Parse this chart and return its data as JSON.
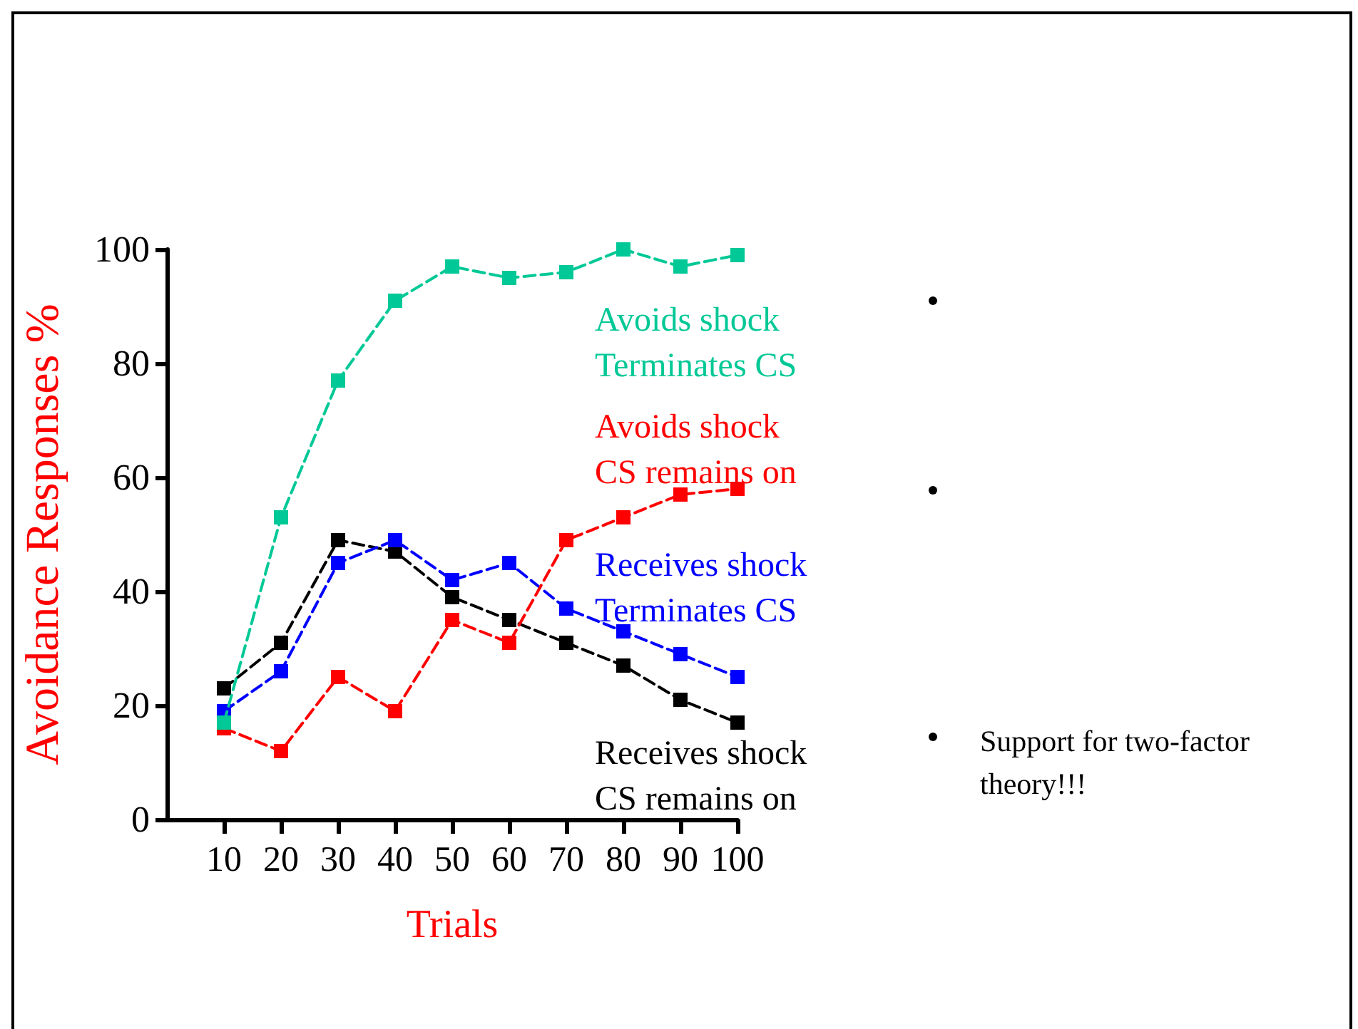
{
  "chart_data": {
    "type": "line",
    "xlabel": "Trials",
    "ylabel": "Avoidance Responses %",
    "x": [
      10,
      20,
      30,
      40,
      50,
      60,
      70,
      80,
      90,
      100
    ],
    "xlim": [
      0,
      100
    ],
    "xticks": [
      10,
      20,
      30,
      40,
      50,
      60,
      70,
      80,
      90,
      100
    ],
    "ylim": [
      0,
      100
    ],
    "yticks": [
      0,
      20,
      40,
      60,
      80,
      100
    ],
    "grid": false,
    "legend": false,
    "marker": "square",
    "line_style": "dashed",
    "series": [
      {
        "name": "Avoids shock\nTerminates CS",
        "color": "#00c896",
        "values": [
          17,
          53,
          77,
          91,
          97,
          95,
          96,
          100,
          97,
          99
        ]
      },
      {
        "name": "Avoids shock\nCS remains on",
        "color": "#ff0000",
        "values": [
          16,
          12,
          25,
          19,
          35,
          31,
          49,
          53,
          57,
          58
        ]
      },
      {
        "name": "Receives shock\nTerminates CS",
        "color": "#0000ff",
        "values": [
          19,
          26,
          45,
          49,
          42,
          45,
          37,
          33,
          29,
          25
        ]
      },
      {
        "name": "Receives shock\nCS remains on",
        "color": "#000000",
        "values": [
          23,
          31,
          49,
          47,
          39,
          35,
          31,
          27,
          21,
          17
        ]
      }
    ],
    "annotations": [
      "Support for two-factor theory!!!"
    ]
  }
}
